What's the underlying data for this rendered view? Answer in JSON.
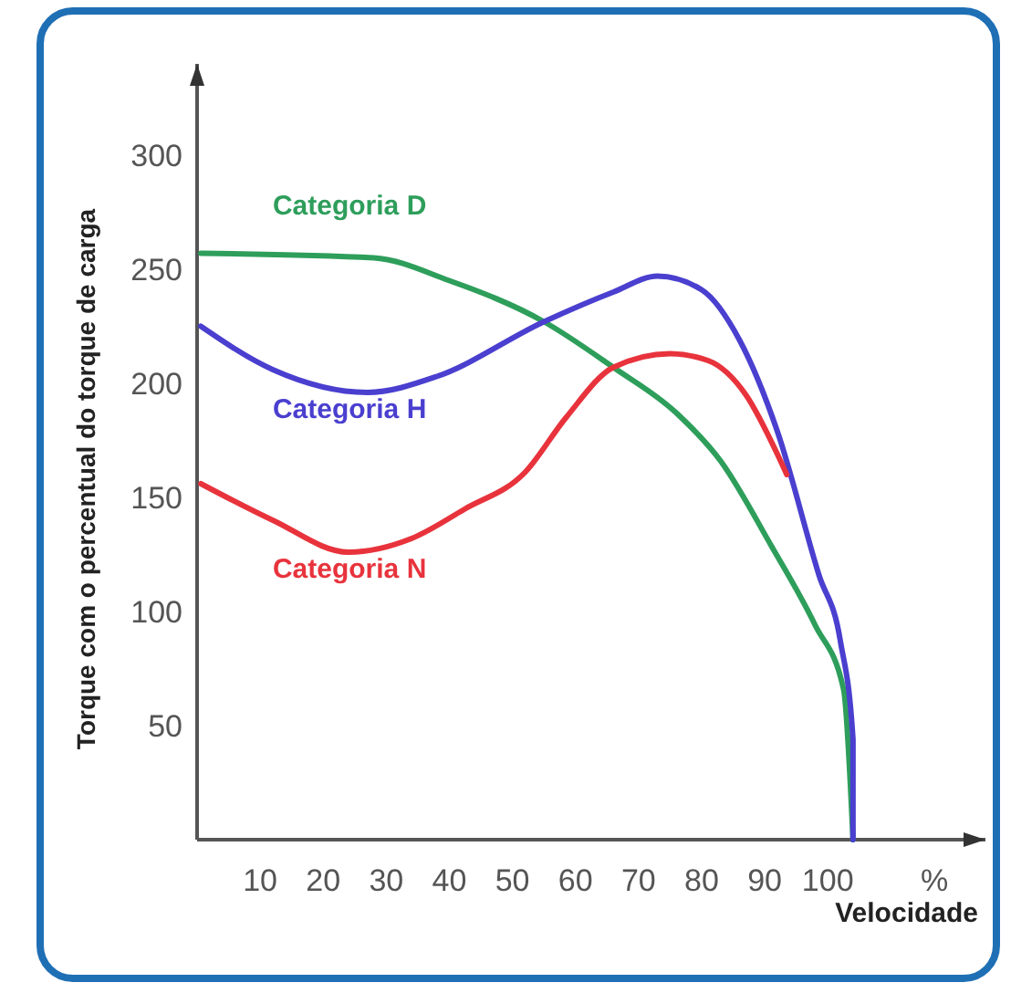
{
  "chart_data": {
    "type": "line",
    "xlabel": "Velocidade",
    "ylabel": "Torque com o percentual do torque de carga",
    "annotations": [
      "%"
    ],
    "xlim": [
      0,
      125
    ],
    "ylim": [
      0,
      340
    ],
    "xticks": [
      10,
      20,
      30,
      40,
      50,
      60,
      70,
      80,
      90,
      100
    ],
    "yticks": [
      50,
      100,
      150,
      200,
      250,
      300
    ],
    "grid": false,
    "marker": "none",
    "line_style": "solid",
    "series": [
      {
        "name": "Categoria D",
        "color": "#2e9e5b",
        "x": [
          0.6,
          28,
          40,
          55,
          66,
          76,
          83,
          91,
          98,
          102.5,
          104
        ],
        "values": [
          257,
          255,
          245,
          227,
          207,
          187,
          166,
          129,
          94,
          66,
          0
        ]
      },
      {
        "name": "Categoria H",
        "color": "#4a3fcf",
        "x": [
          0.6,
          12,
          27,
          38,
          55,
          66,
          73,
          80,
          86,
          92,
          98.6,
          102,
          104,
          104
        ],
        "values": [
          225,
          206,
          196,
          203,
          227,
          240,
          247,
          241,
          219,
          179,
          116,
          87,
          44,
          0
        ]
      },
      {
        "name": "Categoria N",
        "color": "#e8333c",
        "x": [
          0.6,
          12,
          24,
          34,
          42.5,
          52,
          58.5,
          66,
          75,
          81,
          87,
          92,
          93.5
        ],
        "values": [
          156,
          140,
          126,
          132,
          145,
          161,
          185,
          207,
          213,
          210,
          195,
          169,
          160
        ]
      }
    ]
  }
}
